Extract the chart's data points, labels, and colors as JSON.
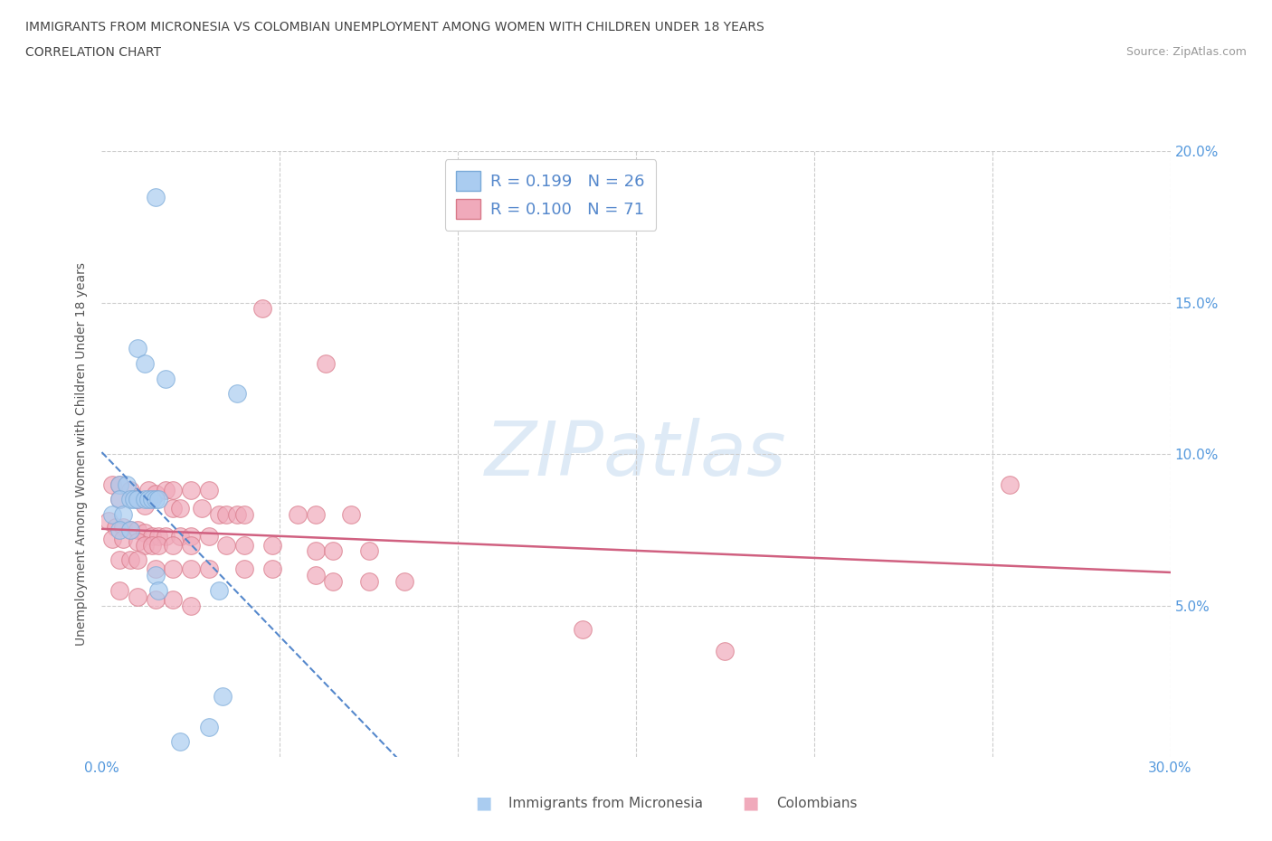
{
  "title_line1": "IMMIGRANTS FROM MICRONESIA VS COLOMBIAN UNEMPLOYMENT AMONG WOMEN WITH CHILDREN UNDER 18 YEARS",
  "title_line2": "CORRELATION CHART",
  "source": "Source: ZipAtlas.com",
  "ylabel": "Unemployment Among Women with Children Under 18 years",
  "xlim": [
    0.0,
    0.3
  ],
  "ylim": [
    0.0,
    0.2
  ],
  "legend_r1": "R = 0.199   N = 26",
  "legend_r2": "R = 0.100   N = 71",
  "color_micro": "#aaccf0",
  "color_micro_edge": "#7aaad8",
  "color_micro_line": "#5588cc",
  "color_colombian": "#f0aabb",
  "color_colombian_edge": "#d87888",
  "color_colombian_line": "#d06080",
  "watermark_color": "#c8ddf0",
  "micro_points": [
    [
      0.015,
      0.185
    ],
    [
      0.01,
      0.135
    ],
    [
      0.012,
      0.13
    ],
    [
      0.018,
      0.125
    ],
    [
      0.038,
      0.12
    ],
    [
      0.005,
      0.09
    ],
    [
      0.007,
      0.09
    ],
    [
      0.005,
      0.085
    ],
    [
      0.008,
      0.085
    ],
    [
      0.009,
      0.085
    ],
    [
      0.01,
      0.085
    ],
    [
      0.012,
      0.085
    ],
    [
      0.013,
      0.085
    ],
    [
      0.014,
      0.085
    ],
    [
      0.015,
      0.085
    ],
    [
      0.016,
      0.085
    ],
    [
      0.003,
      0.08
    ],
    [
      0.006,
      0.08
    ],
    [
      0.005,
      0.075
    ],
    [
      0.008,
      0.075
    ],
    [
      0.015,
      0.06
    ],
    [
      0.016,
      0.055
    ],
    [
      0.033,
      0.055
    ],
    [
      0.034,
      0.02
    ],
    [
      0.03,
      0.01
    ],
    [
      0.022,
      0.005
    ]
  ],
  "colombian_points": [
    [
      0.045,
      0.148
    ],
    [
      0.063,
      0.13
    ],
    [
      0.003,
      0.09
    ],
    [
      0.005,
      0.09
    ],
    [
      0.008,
      0.088
    ],
    [
      0.013,
      0.088
    ],
    [
      0.015,
      0.087
    ],
    [
      0.018,
      0.088
    ],
    [
      0.02,
      0.088
    ],
    [
      0.025,
      0.088
    ],
    [
      0.03,
      0.088
    ],
    [
      0.005,
      0.085
    ],
    [
      0.01,
      0.085
    ],
    [
      0.012,
      0.083
    ],
    [
      0.02,
      0.082
    ],
    [
      0.022,
      0.082
    ],
    [
      0.028,
      0.082
    ],
    [
      0.033,
      0.08
    ],
    [
      0.035,
      0.08
    ],
    [
      0.038,
      0.08
    ],
    [
      0.04,
      0.08
    ],
    [
      0.055,
      0.08
    ],
    [
      0.06,
      0.08
    ],
    [
      0.07,
      0.08
    ],
    [
      0.255,
      0.09
    ],
    [
      0.002,
      0.078
    ],
    [
      0.004,
      0.076
    ],
    [
      0.006,
      0.076
    ],
    [
      0.008,
      0.075
    ],
    [
      0.01,
      0.075
    ],
    [
      0.012,
      0.074
    ],
    [
      0.014,
      0.073
    ],
    [
      0.016,
      0.073
    ],
    [
      0.018,
      0.073
    ],
    [
      0.022,
      0.073
    ],
    [
      0.025,
      0.073
    ],
    [
      0.03,
      0.073
    ],
    [
      0.003,
      0.072
    ],
    [
      0.006,
      0.072
    ],
    [
      0.01,
      0.071
    ],
    [
      0.012,
      0.07
    ],
    [
      0.014,
      0.07
    ],
    [
      0.016,
      0.07
    ],
    [
      0.02,
      0.07
    ],
    [
      0.025,
      0.07
    ],
    [
      0.035,
      0.07
    ],
    [
      0.04,
      0.07
    ],
    [
      0.048,
      0.07
    ],
    [
      0.06,
      0.068
    ],
    [
      0.065,
      0.068
    ],
    [
      0.075,
      0.068
    ],
    [
      0.005,
      0.065
    ],
    [
      0.008,
      0.065
    ],
    [
      0.01,
      0.065
    ],
    [
      0.015,
      0.062
    ],
    [
      0.02,
      0.062
    ],
    [
      0.025,
      0.062
    ],
    [
      0.03,
      0.062
    ],
    [
      0.04,
      0.062
    ],
    [
      0.048,
      0.062
    ],
    [
      0.06,
      0.06
    ],
    [
      0.065,
      0.058
    ],
    [
      0.075,
      0.058
    ],
    [
      0.085,
      0.058
    ],
    [
      0.005,
      0.055
    ],
    [
      0.01,
      0.053
    ],
    [
      0.015,
      0.052
    ],
    [
      0.02,
      0.052
    ],
    [
      0.025,
      0.05
    ],
    [
      0.135,
      0.042
    ],
    [
      0.175,
      0.035
    ]
  ]
}
